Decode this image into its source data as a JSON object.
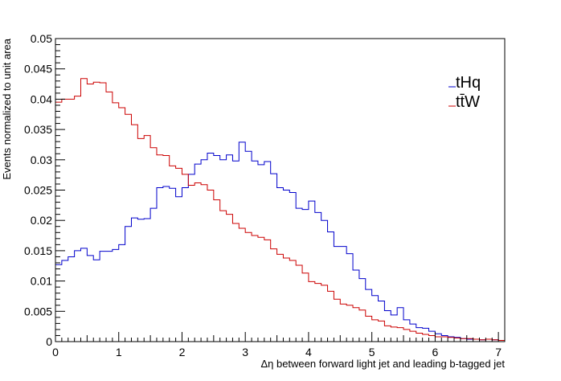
{
  "chart_data": {
    "type": "line",
    "style": "step-histogram",
    "title": "",
    "xlabel": "Δη between forward light jet and leading b-tagged jet",
    "ylabel": "Events normalized to unit area",
    "xlim": [
      0,
      7.1
    ],
    "ylim": [
      0,
      0.05
    ],
    "x_ticks": [
      "0",
      "1",
      "2",
      "3",
      "4",
      "5",
      "6",
      "7"
    ],
    "y_ticks": [
      "0",
      "0.005",
      "0.01",
      "0.015",
      "0.02",
      "0.025",
      "0.03",
      "0.035",
      "0.04",
      "0.045",
      "0.05"
    ],
    "legend_position": "top-right",
    "grid": false,
    "bin_edges": [
      0,
      0.1,
      0.2,
      0.3,
      0.4,
      0.5,
      0.6,
      0.7,
      0.8,
      0.9,
      1.0,
      1.1,
      1.2,
      1.3,
      1.4,
      1.5,
      1.6,
      1.7,
      1.8,
      1.9,
      2.0,
      2.1,
      2.2,
      2.3,
      2.4,
      2.5,
      2.6,
      2.7,
      2.8,
      2.9,
      3.0,
      3.1,
      3.2,
      3.3,
      3.4,
      3.5,
      3.6,
      3.7,
      3.8,
      3.9,
      4.0,
      4.1,
      4.2,
      4.3,
      4.4,
      4.5,
      4.6,
      4.7,
      4.8,
      4.9,
      5.0,
      5.1,
      5.2,
      5.3,
      5.4,
      5.5,
      5.6,
      5.7,
      5.8,
      5.9,
      6.0,
      6.1,
      6.2,
      6.3,
      6.4,
      6.5,
      6.6,
      6.7,
      6.8,
      6.9,
      7.0,
      7.1
    ],
    "series": [
      {
        "name": "tHq",
        "color": "#0000cc",
        "values": [
          0.0127,
          0.0134,
          0.014,
          0.015,
          0.0154,
          0.0142,
          0.0135,
          0.0149,
          0.0149,
          0.0152,
          0.016,
          0.019,
          0.0204,
          0.0202,
          0.0203,
          0.022,
          0.0254,
          0.0256,
          0.0253,
          0.0239,
          0.0254,
          0.0276,
          0.0293,
          0.03,
          0.0311,
          0.0307,
          0.03,
          0.0308,
          0.0298,
          0.0329,
          0.0314,
          0.0298,
          0.0292,
          0.0297,
          0.0277,
          0.0254,
          0.025,
          0.0246,
          0.022,
          0.0218,
          0.0232,
          0.0213,
          0.02,
          0.0181,
          0.0157,
          0.0157,
          0.0145,
          0.0118,
          0.0104,
          0.0086,
          0.0076,
          0.0067,
          0.0051,
          0.0044,
          0.0056,
          0.0036,
          0.0029,
          0.0023,
          0.0022,
          0.0017,
          0.0013,
          0.001,
          0.0008,
          0.0007,
          0.0005,
          0.0004,
          0.0004,
          0.0003,
          0.0004,
          0.0003,
          0.0002
        ]
      },
      {
        "name": "tt̄W",
        "color": "#cc0000",
        "values": [
          0.0395,
          0.04,
          0.04,
          0.0405,
          0.0434,
          0.0425,
          0.0428,
          0.0427,
          0.0412,
          0.0394,
          0.0386,
          0.0375,
          0.0358,
          0.0335,
          0.034,
          0.032,
          0.0308,
          0.0307,
          0.029,
          0.0286,
          0.0276,
          0.0258,
          0.0262,
          0.0259,
          0.025,
          0.0234,
          0.0216,
          0.021,
          0.0195,
          0.0187,
          0.018,
          0.0175,
          0.0172,
          0.0168,
          0.0153,
          0.0144,
          0.0138,
          0.0134,
          0.0126,
          0.0113,
          0.0099,
          0.0096,
          0.0093,
          0.0083,
          0.007,
          0.0062,
          0.006,
          0.0056,
          0.0052,
          0.0042,
          0.0036,
          0.0034,
          0.0026,
          0.0024,
          0.0023,
          0.002,
          0.0017,
          0.0014,
          0.0012,
          0.001,
          0.0008,
          0.0008,
          0.0007,
          0.0006,
          0.0005,
          0.0005,
          0.0004,
          0.0003,
          0.0004,
          0.0003,
          0.0002
        ]
      }
    ]
  }
}
